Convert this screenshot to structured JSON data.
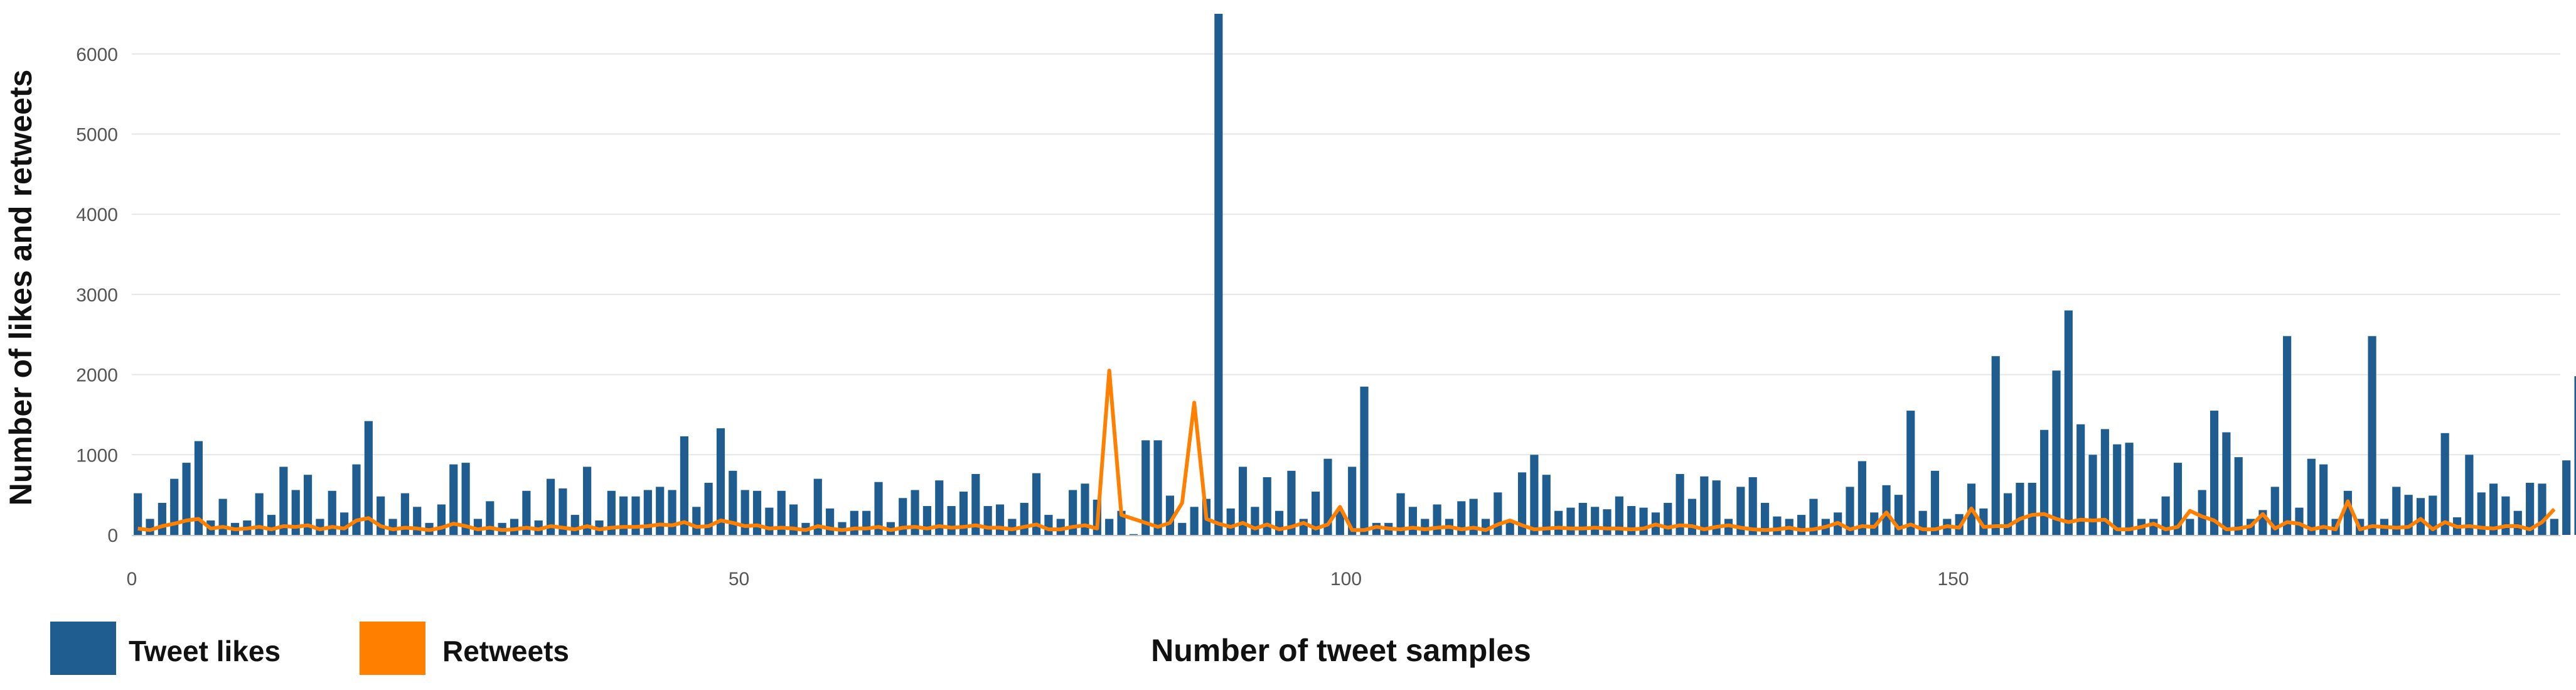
{
  "chart_data": {
    "type": "bar",
    "title": "",
    "xlabel": "Number of tweet samples",
    "ylabel": "Number of likes and retweets",
    "xlim": [
      0,
      200
    ],
    "ylim": [
      0,
      6500
    ],
    "x_ticks": [
      0,
      50,
      100,
      150
    ],
    "y_ticks": [
      0,
      1000,
      2000,
      3000,
      4000,
      5000,
      6000
    ],
    "grid": "horizontal",
    "legend_position": "bottom-left",
    "colors": {
      "likes": "#1f5c8f",
      "retweets": "#ff8000",
      "grid": "#e6e6e6",
      "axis": "#c8c8c8"
    },
    "series": [
      {
        "name": "Tweet likes",
        "type": "bar",
        "values": [
          520,
          200,
          400,
          700,
          900,
          1170,
          180,
          450,
          150,
          180,
          520,
          250,
          850,
          560,
          750,
          200,
          550,
          280,
          880,
          1420,
          480,
          200,
          520,
          350,
          150,
          380,
          880,
          900,
          200,
          420,
          150,
          200,
          550,
          180,
          700,
          580,
          250,
          850,
          180,
          550,
          480,
          480,
          560,
          600,
          560,
          1230,
          350,
          650,
          1330,
          800,
          560,
          550,
          340,
          550,
          380,
          150,
          700,
          330,
          160,
          300,
          300,
          660,
          160,
          460,
          560,
          360,
          680,
          360,
          540,
          760,
          360,
          380,
          200,
          400,
          770,
          250,
          200,
          560,
          640,
          440,
          200,
          300,
          10,
          1180,
          1180,
          490,
          150,
          350,
          450,
          6500,
          330,
          850,
          350,
          720,
          300,
          800,
          200,
          540,
          950,
          300,
          850,
          1850,
          150,
          150,
          520,
          350,
          200,
          380,
          200,
          420,
          450,
          200,
          530,
          160,
          780,
          1000,
          750,
          300,
          340,
          400,
          350,
          320,
          480,
          360,
          340,
          280,
          400,
          760,
          450,
          730,
          680,
          200,
          600,
          720,
          400,
          230,
          200,
          250,
          450,
          200,
          280,
          600,
          920,
          280,
          620,
          500,
          1550,
          300,
          800,
          200,
          260,
          640,
          330,
          2230,
          520,
          650,
          650,
          1310,
          2050,
          2800,
          1380,
          1000,
          1320,
          1130,
          1150,
          200,
          200,
          480,
          900,
          200,
          560,
          1550,
          1280,
          970,
          200,
          310,
          600,
          2480,
          340,
          950,
          880,
          200,
          550,
          200,
          2480,
          200,
          600,
          500,
          460,
          490,
          1270,
          220,
          1000,
          530,
          640,
          480,
          300,
          650,
          640,
          200,
          930,
          1980
        ]
      },
      {
        "name": "Retweets",
        "type": "line",
        "values": [
          80,
          60,
          110,
          140,
          180,
          200,
          80,
          100,
          70,
          80,
          100,
          70,
          110,
          100,
          120,
          70,
          100,
          80,
          180,
          210,
          110,
          70,
          90,
          80,
          60,
          90,
          140,
          110,
          70,
          90,
          60,
          70,
          90,
          70,
          110,
          90,
          70,
          110,
          70,
          90,
          100,
          100,
          110,
          130,
          120,
          160,
          100,
          110,
          180,
          150,
          110,
          120,
          80,
          90,
          80,
          60,
          110,
          80,
          60,
          80,
          80,
          100,
          60,
          90,
          100,
          80,
          110,
          90,
          100,
          120,
          90,
          90,
          70,
          100,
          130,
          70,
          70,
          100,
          120,
          80,
          2050,
          250,
          200,
          150,
          100,
          150,
          400,
          1650,
          200,
          140,
          100,
          150,
          80,
          130,
          70,
          100,
          150,
          80,
          130,
          350,
          60,
          60,
          100,
          80,
          70,
          90,
          70,
          90,
          100,
          70,
          90,
          60,
          130,
          180,
          120,
          70,
          80,
          90,
          80,
          80,
          90,
          80,
          80,
          70,
          80,
          130,
          90,
          120,
          110,
          70,
          100,
          120,
          90,
          70,
          60,
          70,
          90,
          60,
          70,
          100,
          150,
          70,
          110,
          100,
          280,
          80,
          130,
          70,
          70,
          110,
          90,
          330,
          100,
          110,
          110,
          200,
          250,
          260,
          200,
          160,
          190,
          180,
          190,
          70,
          70,
          100,
          140,
          70,
          100,
          300,
          230,
          180,
          70,
          80,
          110,
          260,
          80,
          160,
          140,
          70,
          100,
          70,
          420,
          70,
          110,
          100,
          90,
          100,
          200,
          70,
          160,
          100,
          110,
          90,
          80,
          110,
          110,
          70,
          160,
          320
        ]
      }
    ]
  }
}
